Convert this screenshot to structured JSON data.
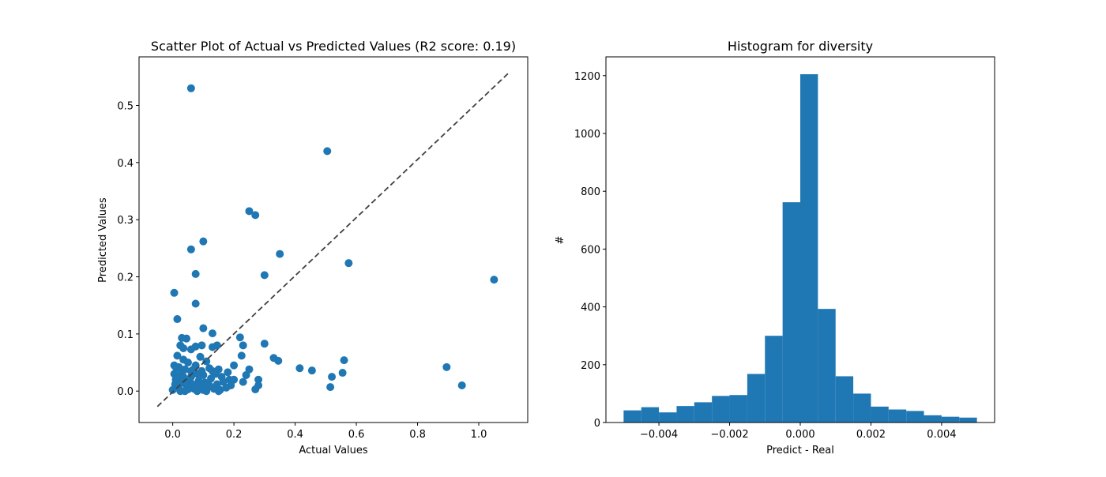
{
  "chart_data": [
    {
      "type": "scatter",
      "title": "Scatter Plot of Actual vs Predicted Values (R2 score: 0.19)",
      "xlabel": "Actual Values",
      "ylabel": "Predicted Values",
      "xlim": [
        -0.11,
        1.16
      ],
      "ylim": [
        -0.055,
        0.585
      ],
      "xticks": [
        0.0,
        0.2,
        0.4,
        0.6,
        0.8,
        1.0
      ],
      "xtick_labels": [
        "0.0",
        "0.2",
        "0.4",
        "0.6",
        "0.8",
        "1.0"
      ],
      "yticks": [
        0.0,
        0.1,
        0.2,
        0.3,
        0.4,
        0.5
      ],
      "ytick_labels": [
        "0.0",
        "0.1",
        "0.2",
        "0.3",
        "0.4",
        "0.5"
      ],
      "grid": false,
      "point_color": "#1f77b4",
      "reference_line": {
        "x": [
          -0.05,
          1.1
        ],
        "y": [
          -0.027,
          0.558
        ],
        "color": "#404040",
        "style": "dashed"
      },
      "points": [
        [
          0.06,
          0.53
        ],
        [
          0.505,
          0.42
        ],
        [
          0.25,
          0.315
        ],
        [
          0.27,
          0.308
        ],
        [
          0.1,
          0.262
        ],
        [
          0.06,
          0.248
        ],
        [
          0.35,
          0.24
        ],
        [
          0.575,
          0.224
        ],
        [
          0.075,
          0.205
        ],
        [
          0.3,
          0.203
        ],
        [
          1.05,
          0.195
        ],
        [
          0.005,
          0.172
        ],
        [
          0.075,
          0.153
        ],
        [
          0.015,
          0.126
        ],
        [
          0.1,
          0.11
        ],
        [
          0.13,
          0.101
        ],
        [
          0.03,
          0.093
        ],
        [
          0.045,
          0.092
        ],
        [
          0.22,
          0.094
        ],
        [
          0.075,
          0.078
        ],
        [
          0.06,
          0.073
        ],
        [
          0.025,
          0.08
        ],
        [
          0.095,
          0.08
        ],
        [
          0.13,
          0.077
        ],
        [
          0.145,
          0.08
        ],
        [
          0.23,
          0.08
        ],
        [
          0.3,
          0.083
        ],
        [
          0.035,
          0.075
        ],
        [
          0.015,
          0.062
        ],
        [
          0.09,
          0.06
        ],
        [
          0.225,
          0.062
        ],
        [
          0.33,
          0.058
        ],
        [
          0.345,
          0.053
        ],
        [
          0.56,
          0.054
        ],
        [
          0.035,
          0.055
        ],
        [
          0.05,
          0.05
        ],
        [
          0.075,
          0.045
        ],
        [
          0.11,
          0.052
        ],
        [
          0.2,
          0.045
        ],
        [
          0.12,
          0.04
        ],
        [
          0.15,
          0.038
        ],
        [
          0.18,
          0.033
        ],
        [
          0.25,
          0.038
        ],
        [
          0.415,
          0.04
        ],
        [
          0.455,
          0.036
        ],
        [
          0.555,
          0.032
        ],
        [
          0.895,
          0.042
        ],
        [
          0.005,
          0.045
        ],
        [
          0.02,
          0.042
        ],
        [
          0.04,
          0.038
        ],
        [
          0.06,
          0.035
        ],
        [
          0.08,
          0.03
        ],
        [
          0.1,
          0.028
        ],
        [
          0.14,
          0.03
        ],
        [
          0.24,
          0.028
        ],
        [
          0.28,
          0.02
        ],
        [
          0.52,
          0.025
        ],
        [
          0.2,
          0.02
        ],
        [
          0.23,
          0.016
        ],
        [
          0.28,
          0.01
        ],
        [
          0.27,
          0.003
        ],
        [
          0.515,
          0.007
        ],
        [
          0.945,
          0.01
        ],
        [
          0.005,
          0.03
        ],
        [
          0.01,
          0.02
        ],
        [
          0.015,
          0.01
        ],
        [
          0.02,
          0.005
        ],
        [
          0.025,
          0.0
        ],
        [
          0.03,
          0.015
        ],
        [
          0.035,
          0.025
        ],
        [
          0.045,
          0.01
        ],
        [
          0.05,
          0.003
        ],
        [
          0.055,
          0.02
        ],
        [
          0.065,
          0.012
        ],
        [
          0.07,
          0.004
        ],
        [
          0.085,
          0.018
        ],
        [
          0.09,
          0.008
        ],
        [
          0.1,
          0.002
        ],
        [
          0.105,
          0.015
        ],
        [
          0.115,
          0.007
        ],
        [
          0.125,
          0.022
        ],
        [
          0.135,
          0.004
        ],
        [
          0.145,
          0.012
        ],
        [
          0.155,
          0.002
        ],
        [
          0.165,
          0.016
        ],
        [
          0.175,
          0.006
        ],
        [
          0.19,
          0.01
        ],
        [
          0.15,
          0.0
        ],
        [
          0.0,
          0.002
        ],
        [
          0.008,
          0.012
        ],
        [
          0.012,
          0.04
        ],
        [
          0.028,
          0.03
        ],
        [
          0.04,
          0.0
        ],
        [
          0.06,
          0.025
        ],
        [
          0.08,
          0.0
        ],
        [
          0.095,
          0.035
        ],
        [
          0.11,
          0.0
        ],
        [
          0.13,
          0.035
        ],
        [
          0.16,
          0.025
        ],
        [
          0.185,
          0.02
        ],
        [
          0.02,
          0.02
        ],
        [
          0.042,
          0.018
        ],
        [
          0.068,
          0.038
        ],
        [
          0.088,
          0.012
        ],
        [
          0.12,
          0.01
        ]
      ]
    },
    {
      "type": "bar",
      "title": "Histogram for diversity",
      "xlabel": "Predict - Real",
      "ylabel": "#",
      "xlim": [
        -0.0055,
        0.0055
      ],
      "ylim": [
        0,
        1265
      ],
      "xticks": [
        -0.004,
        -0.002,
        0.0,
        0.002,
        0.004
      ],
      "xtick_labels": [
        "−0.004",
        "−0.002",
        "0.000",
        "0.002",
        "0.004"
      ],
      "yticks": [
        0,
        200,
        400,
        600,
        800,
        1000,
        1200
      ],
      "ytick_labels": [
        "0",
        "200",
        "400",
        "600",
        "800",
        "1000",
        "1200"
      ],
      "grid": false,
      "bar_color": "#1f77b4",
      "bin_edges": [
        -0.005,
        -0.0045,
        -0.004,
        -0.0035,
        -0.003,
        -0.0025,
        -0.002,
        -0.0015,
        -0.001,
        -0.0005,
        0.0,
        0.0005,
        0.001,
        0.0015,
        0.002,
        0.0025,
        0.003,
        0.0035,
        0.004,
        0.0045,
        0.005
      ],
      "values": [
        42,
        53,
        35,
        57,
        70,
        92,
        95,
        168,
        300,
        762,
        1205,
        393,
        160,
        100,
        55,
        45,
        40,
        25,
        20,
        17
      ]
    }
  ]
}
